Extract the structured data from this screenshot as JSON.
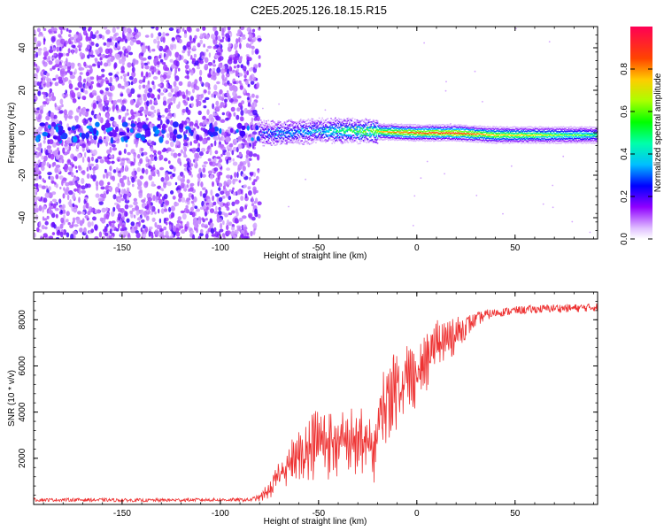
{
  "title": "C2E5.2025.126.18.15.R15",
  "chart_data": [
    {
      "type": "heatmap",
      "xlabel": "Height of straight line (km)",
      "ylabel": "Frequency (Hz)",
      "xlim": [
        -195,
        92
      ],
      "ylim": [
        -50,
        50
      ],
      "xticks": [
        -150,
        -100,
        -50,
        0,
        50
      ],
      "yticks": [
        -40,
        -20,
        0,
        20,
        40
      ],
      "grid": false,
      "colorbar": {
        "label": "Normalized spectral amplitude",
        "range": [
          0,
          1
        ],
        "ticks": [
          0,
          0.2,
          0.4,
          0.6,
          0.8
        ],
        "tick_labels": [
          "0.0",
          "0.2",
          "0.4",
          "0.6",
          "0.8"
        ],
        "colors": [
          "#e8d0ff",
          "#8a00ff",
          "#0000ff",
          "#00e5ff",
          "#00ff40",
          "#ffff00",
          "#ff8000",
          "#ff0000",
          "#ff1060"
        ]
      },
      "noise_region_x": [
        -195,
        -80
      ],
      "ridge": [
        {
          "x": -80,
          "freq": 0,
          "amp": 0.25
        },
        {
          "x": -70,
          "freq": 0,
          "amp": 0.35
        },
        {
          "x": -50,
          "freq": 1,
          "amp": 0.42
        },
        {
          "x": -30,
          "freq": 1,
          "amp": 0.6
        },
        {
          "x": -15,
          "freq": 0.5,
          "amp": 0.75
        },
        {
          "x": 0,
          "freq": 0,
          "amp": 0.82
        },
        {
          "x": 20,
          "freq": 0,
          "amp": 0.85
        },
        {
          "x": 40,
          "freq": -1,
          "amp": 0.7
        },
        {
          "x": 60,
          "freq": -1,
          "amp": 0.65
        },
        {
          "x": 92,
          "freq": -1,
          "amp": 0.5
        }
      ]
    },
    {
      "type": "line",
      "xlabel": "Height of straight line (km)",
      "ylabel": "SNR (10 * v/v)",
      "xlim": [
        -195,
        92
      ],
      "ylim": [
        0,
        9200
      ],
      "xticks": [
        -150,
        -100,
        -50,
        0,
        50
      ],
      "yticks": [
        2000,
        4000,
        6000,
        8000
      ],
      "grid": false,
      "series": [
        {
          "color": "#ee3333",
          "points": [
            [
              -195,
              200
            ],
            [
              -170,
              200
            ],
            [
              -140,
              180
            ],
            [
              -110,
              200
            ],
            [
              -85,
              200
            ],
            [
              -80,
              300
            ],
            [
              -75,
              600
            ],
            [
              -70,
              1300
            ],
            [
              -65,
              1800
            ],
            [
              -60,
              2000
            ],
            [
              -55,
              2500
            ],
            [
              -50,
              2700
            ],
            [
              -45,
              2700
            ],
            [
              -40,
              2600
            ],
            [
              -35,
              2700
            ],
            [
              -30,
              2700
            ],
            [
              -25,
              2600
            ],
            [
              -22,
              2200
            ],
            [
              -20,
              3400
            ],
            [
              -15,
              4500
            ],
            [
              -10,
              5200
            ],
            [
              -5,
              5500
            ],
            [
              0,
              5600
            ],
            [
              5,
              6200
            ],
            [
              10,
              6900
            ],
            [
              15,
              7100
            ],
            [
              20,
              7400
            ],
            [
              25,
              7700
            ],
            [
              30,
              8000
            ],
            [
              35,
              8200
            ],
            [
              40,
              8300
            ],
            [
              50,
              8400
            ],
            [
              60,
              8450
            ],
            [
              70,
              8500
            ],
            [
              80,
              8500
            ],
            [
              92,
              8550
            ]
          ],
          "spread": [
            [
              -195,
              120
            ],
            [
              -85,
              120
            ],
            [
              -80,
              250
            ],
            [
              -70,
              900
            ],
            [
              -60,
              1700
            ],
            [
              -50,
              2300
            ],
            [
              -40,
              2200
            ],
            [
              -30,
              2300
            ],
            [
              -22,
              1800
            ],
            [
              -20,
              2500
            ],
            [
              -10,
              2600
            ],
            [
              0,
              2000
            ],
            [
              10,
              1800
            ],
            [
              20,
              1200
            ],
            [
              30,
              500
            ],
            [
              40,
              300
            ],
            [
              92,
              300
            ]
          ]
        }
      ]
    }
  ]
}
